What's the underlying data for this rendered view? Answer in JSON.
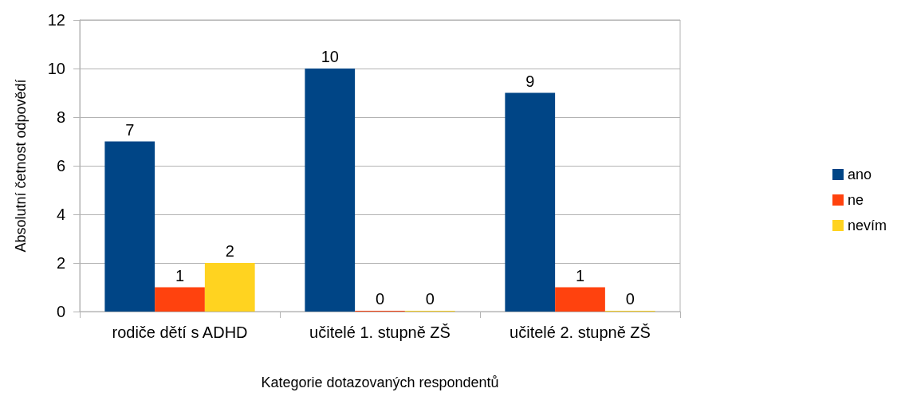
{
  "chart_data": {
    "type": "bar",
    "xlabel": "Kategorie dotazovaných respondentů",
    "ylabel": "Absolutní četnost odpovědí",
    "categories": [
      "rodiče dětí s ADHD",
      "učitelé 1. stupně ZŠ",
      "učitelé 2. stupně ZŠ"
    ],
    "series": [
      {
        "name": "ano",
        "color": "#004586",
        "values": [
          7,
          10,
          9
        ]
      },
      {
        "name": "ne",
        "color": "#ff420e",
        "values": [
          1,
          0,
          1
        ]
      },
      {
        "name": "nevím",
        "color": "#ffd320",
        "values": [
          2,
          0,
          0
        ]
      }
    ],
    "ylim": [
      0,
      12
    ],
    "yticks": [
      0,
      2,
      4,
      6,
      8,
      10,
      12
    ],
    "grid": "y",
    "legend": "right",
    "data_labels": true
  }
}
